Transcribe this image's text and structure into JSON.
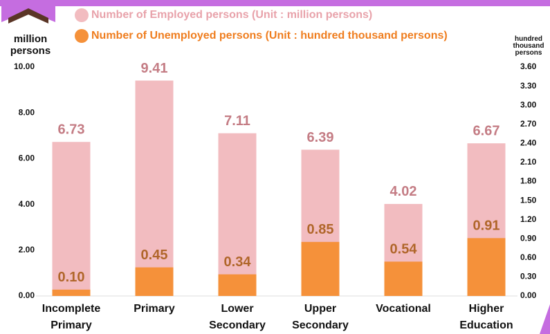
{
  "chart_data": {
    "type": "bar",
    "legend": "top",
    "ylabel": "million persons",
    "y2label": "hundred thousand persons",
    "categories": [
      "Incomplete Primary",
      "Primary",
      "Lower Secondary",
      "Upper Secondary",
      "Vocational",
      "Higher Education"
    ],
    "series": [
      {
        "name": "Number of Employed persons (Unit : million persons)",
        "color": "#f2bcc0",
        "values": [
          6.73,
          9.41,
          7.11,
          6.39,
          4.02,
          6.67
        ],
        "value_labels": [
          "6.73",
          "9.41",
          "7.11",
          "6.39",
          "4.02",
          "6.67"
        ]
      },
      {
        "name": "Number of Unemployed persons (Unit : hundred thousand persons)",
        "color": "#f5913a",
        "axis": "y2",
        "values": [
          0.1,
          0.45,
          0.34,
          0.85,
          0.54,
          0.91
        ],
        "value_labels": [
          "0.10",
          "0.45",
          "0.34",
          "0.85",
          "0.54",
          "0.91"
        ]
      }
    ],
    "ylim": [
      0,
      10
    ],
    "yticks": [
      {
        "value": 0,
        "label": "0.00"
      },
      {
        "value": 2,
        "label": "2.00"
      },
      {
        "value": 4,
        "label": "4.00"
      },
      {
        "value": 6,
        "label": "6.00"
      },
      {
        "value": 8,
        "label": "8.00"
      },
      {
        "value": 10,
        "label": "10.00"
      }
    ],
    "y2lim": [
      0,
      3.6
    ],
    "y2ticks": [
      {
        "value": 0,
        "label": "0.00"
      },
      {
        "value": 0.3,
        "label": "0.30"
      },
      {
        "value": 0.6,
        "label": "0.60"
      },
      {
        "value": 0.9,
        "label": "0.90"
      },
      {
        "value": 1.2,
        "label": "1.20"
      },
      {
        "value": 1.5,
        "label": "1.50"
      },
      {
        "value": 1.8,
        "label": "1.80"
      },
      {
        "value": 2.1,
        "label": "2.10"
      },
      {
        "value": 2.4,
        "label": "2.40"
      },
      {
        "value": 2.7,
        "label": "2.70"
      },
      {
        "value": 3.0,
        "label": "3.00"
      },
      {
        "value": 3.3,
        "label": "3.30"
      },
      {
        "value": 3.6,
        "label": "3.60"
      }
    ]
  }
}
